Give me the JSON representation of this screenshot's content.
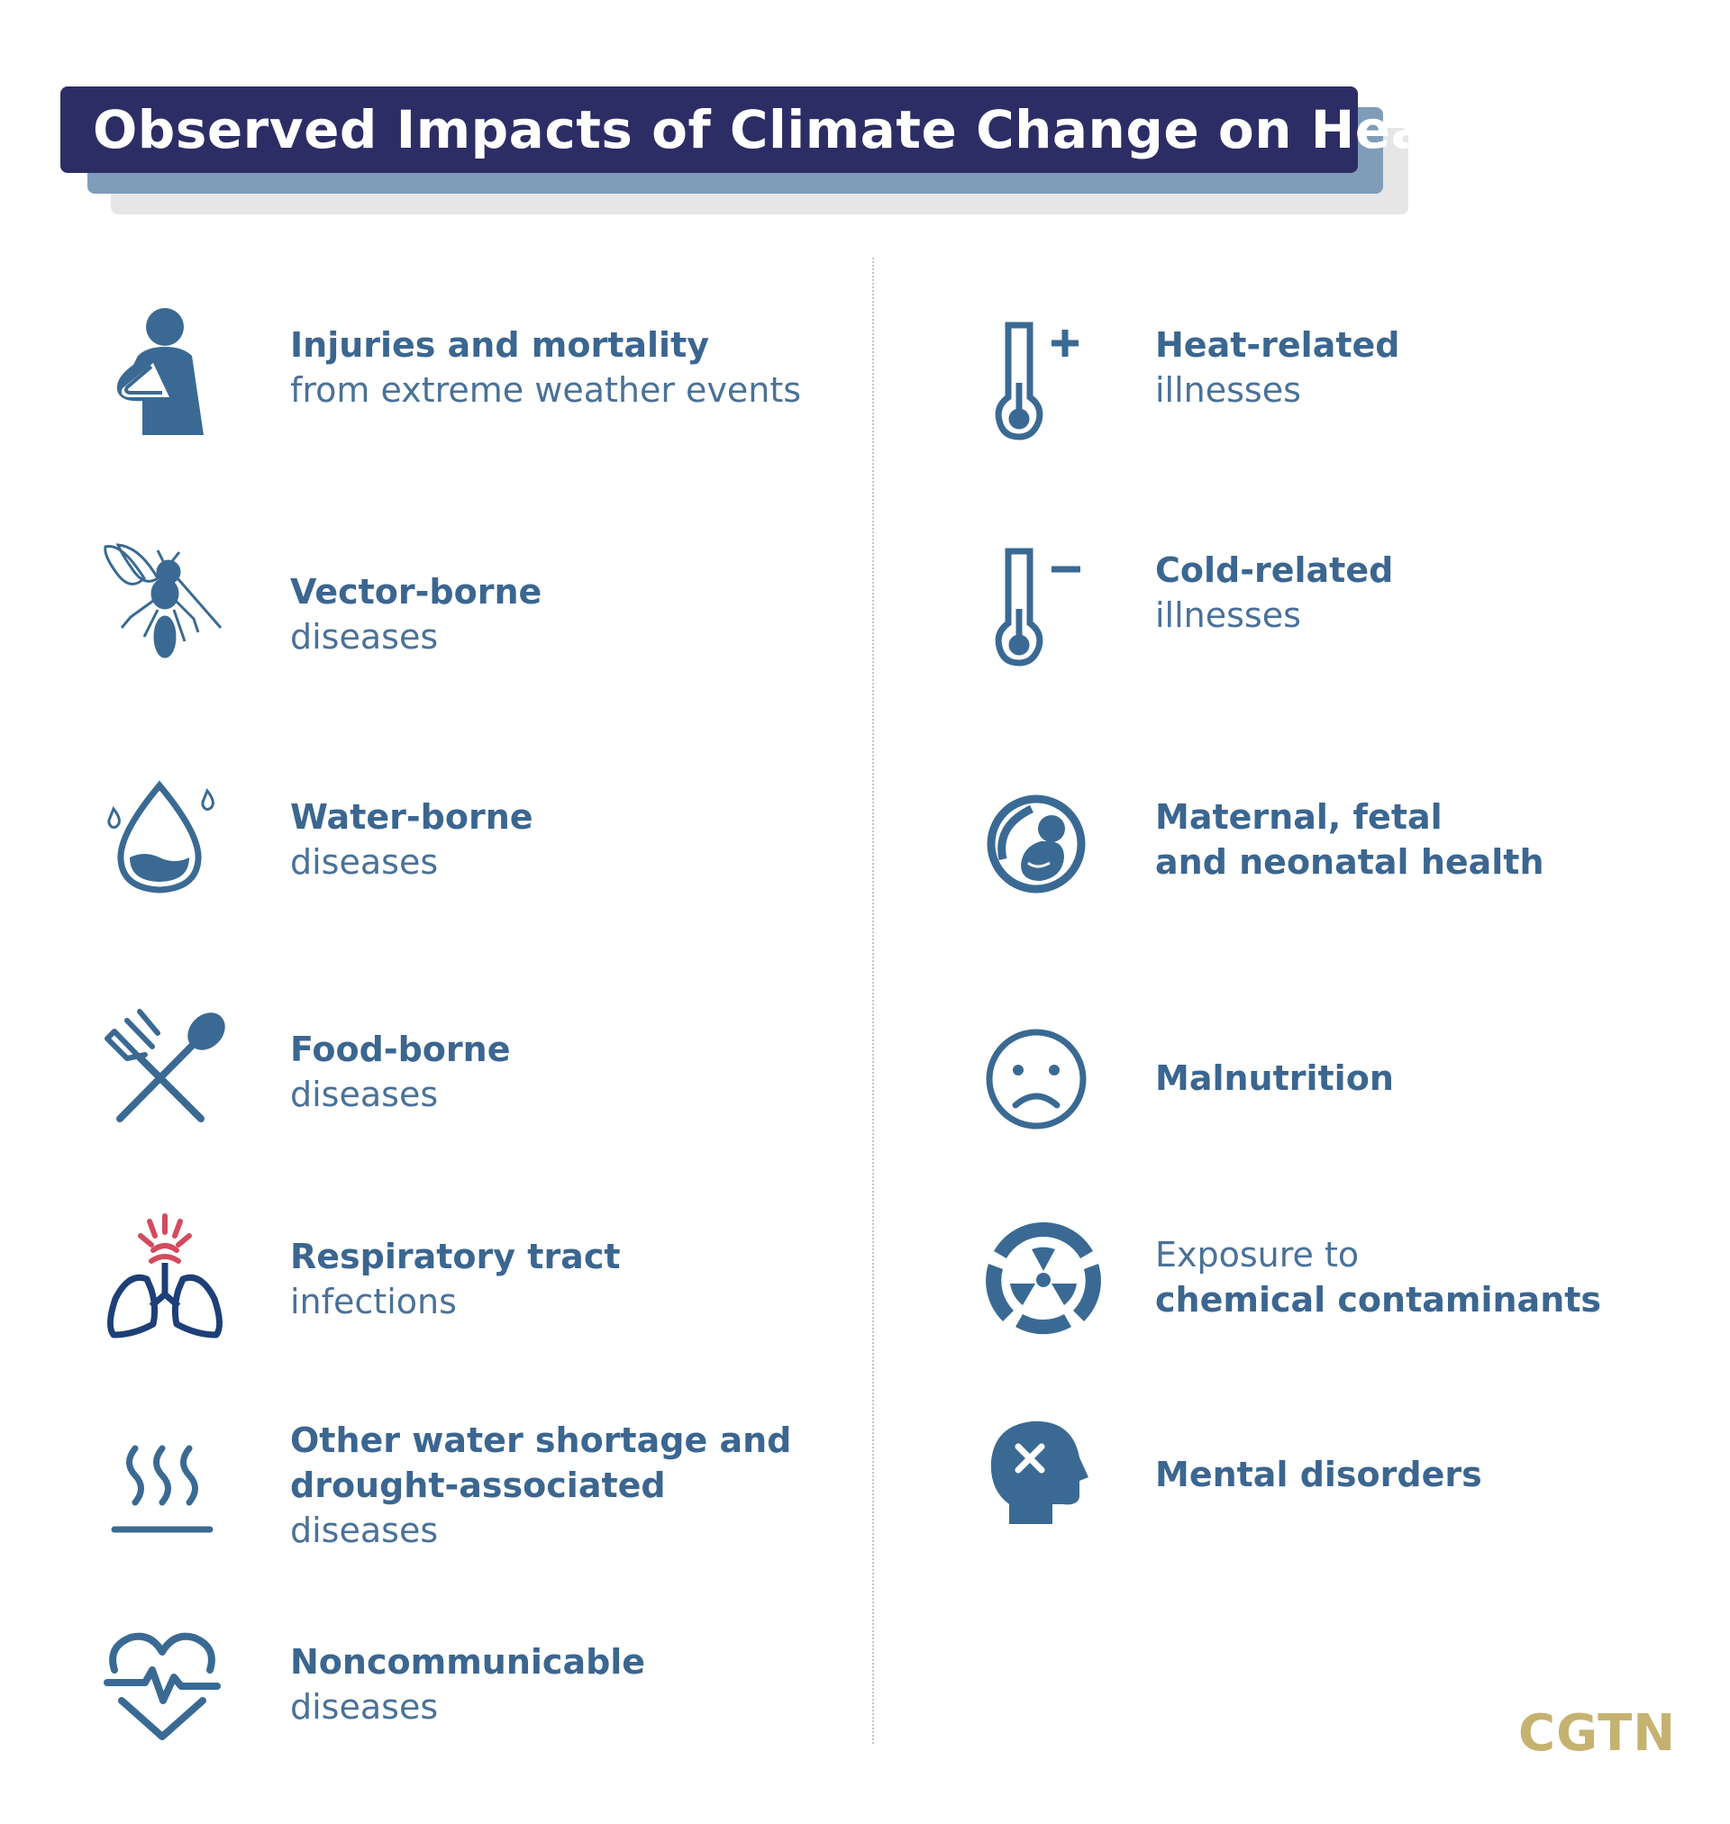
{
  "title": "Observed Impacts of Climate Change on Health",
  "colors": {
    "banner": "#2d2d66",
    "banner_shadow": "#7f9db8",
    "icon": "#3a6a93",
    "accent_red": "#d44a5e",
    "logo": "#c6b270"
  },
  "left": [
    {
      "icon": "injured-person-icon",
      "bold": "Injuries and mortality",
      "normal": "from extreme weather events"
    },
    {
      "icon": "mosquito-icon",
      "bold": "Vector-borne",
      "normal": "diseases"
    },
    {
      "icon": "water-drop-icon",
      "bold": "Water-borne",
      "normal": "diseases"
    },
    {
      "icon": "fork-spoon-icon",
      "bold": "Food-borne",
      "normal": "diseases"
    },
    {
      "icon": "lungs-icon",
      "bold": "Respiratory tract",
      "normal": "infections"
    },
    {
      "icon": "heat-waves-icon",
      "bold1": "Other water shortage and",
      "bold2": "drought-associated",
      "normal": "diseases"
    },
    {
      "icon": "heart-pulse-icon",
      "bold": "Noncommunicable",
      "normal": "diseases"
    }
  ],
  "right": [
    {
      "icon": "thermometer-plus-icon",
      "bold": "Heat-related",
      "normal": "illnesses"
    },
    {
      "icon": "thermometer-minus-icon",
      "bold": "Cold-related",
      "normal": "illnesses"
    },
    {
      "icon": "fetus-icon",
      "bold1": "Maternal, fetal",
      "bold2": "and neonatal health"
    },
    {
      "icon": "sad-face-icon",
      "bold": "Malnutrition"
    },
    {
      "icon": "radiation-icon",
      "normal": "Exposure to",
      "bold": "chemical contaminants"
    },
    {
      "icon": "head-x-icon",
      "bold": "Mental disorders"
    }
  ],
  "logo": "CGTN"
}
